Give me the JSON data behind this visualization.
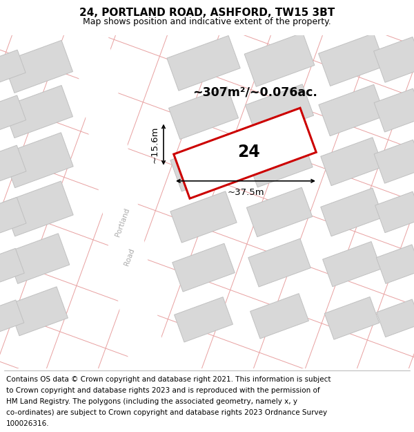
{
  "title": "24, PORTLAND ROAD, ASHFORD, TW15 3BT",
  "subtitle": "Map shows position and indicative extent of the property.",
  "footer_line1": "Contains OS data © Crown copyright and database right 2021. This information is subject",
  "footer_line2": "to Crown copyright and database rights 2023 and is reproduced with the permission of",
  "footer_line3": "HM Land Registry. The polygons (including the associated geometry, namely x, y",
  "footer_line4": "co-ordinates) are subject to Crown copyright and database rights 2023 Ordnance Survey",
  "footer_line5": "100026316.",
  "map_bg": "#ebebeb",
  "road_color": "#ffffff",
  "plot_outline_color": "#cc0000",
  "plot_fill_color": "#ffffff",
  "plot_number": "24",
  "area_text": "~307m²/~0.076ac.",
  "width_text": "~37.5m",
  "height_text": "~15.6m",
  "road_label": "Portland",
  "road_label2": "Road",
  "grid_line_color": "#e8a0a0",
  "building_color": "#d8d8d8",
  "building_outline": "#c0c0c0",
  "title_fontsize": 11,
  "subtitle_fontsize": 9,
  "footer_fontsize": 7.5
}
